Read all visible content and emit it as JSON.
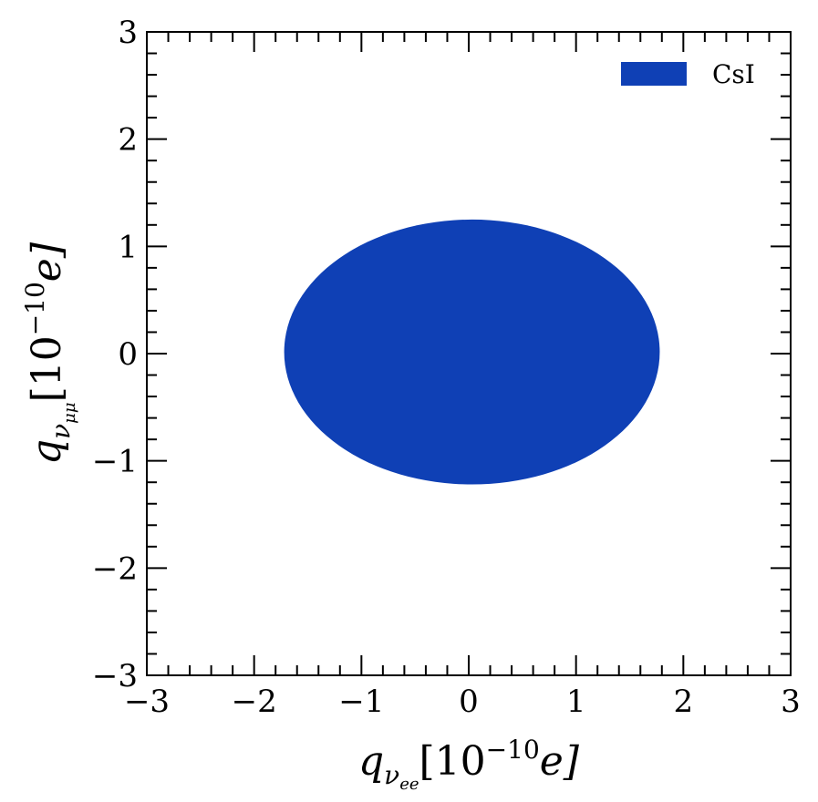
{
  "chart_data": {
    "type": "area",
    "title": "",
    "xlabel": {
      "base": "q",
      "sub_main": "ν",
      "sub_sub": "ee",
      "unit_open": "[10",
      "unit_exp": "−10",
      "unit_close": "e]"
    },
    "ylabel": {
      "base": "q",
      "sub_main": "ν",
      "sub_sub": "μμ",
      "unit_open": "[10",
      "unit_exp": "−10",
      "unit_close": "e]"
    },
    "xlim": [
      -3,
      3
    ],
    "ylim": [
      -3,
      3
    ],
    "xticks": [
      -3,
      -2,
      -1,
      0,
      1,
      2,
      3
    ],
    "yticks": [
      -3,
      -2,
      -1,
      0,
      1,
      2,
      3
    ],
    "xtick_labels": [
      "−3",
      "−2",
      "−1",
      "0",
      "1",
      "2",
      "3"
    ],
    "ytick_labels": [
      "−3",
      "−2",
      "−1",
      "0",
      "1",
      "2",
      "3"
    ],
    "minor_tick_step": 0.2,
    "grid": false,
    "legend_position": "top-right",
    "series": [
      {
        "name": "CsI",
        "color": "#0f40b5",
        "region": "ellipse",
        "x_range": [
          -1.72,
          1.78
        ],
        "y_range": [
          -1.22,
          1.25
        ]
      }
    ]
  }
}
